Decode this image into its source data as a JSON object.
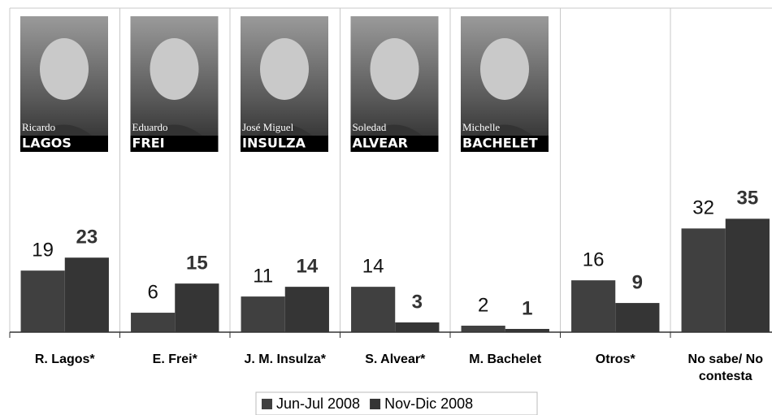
{
  "chart_data": {
    "type": "bar",
    "categories": [
      "R. Lagos*",
      "E. Frei*",
      "J. M. Insulza*",
      "S. Alvear*",
      "M. Bachelet",
      "Otros*",
      "No sabe/ No contesta"
    ],
    "series": [
      {
        "name": "Jun-Jul 2008",
        "color": "#404040",
        "values": [
          19,
          6,
          11,
          14,
          2,
          16,
          32
        ]
      },
      {
        "name": "Nov-Dic 2008",
        "color": "#353535",
        "values": [
          23,
          15,
          14,
          3,
          1,
          9,
          35
        ]
      }
    ],
    "ylim": [
      0,
      100
    ],
    "portraits": [
      {
        "first": "Ricardo",
        "last": "LAGOS"
      },
      {
        "first": "Eduardo",
        "last": "FREI"
      },
      {
        "first": "José Miguel",
        "last": "INSULZA"
      },
      {
        "first": "Soledad",
        "last": "ALVEAR"
      },
      {
        "first": "Michelle",
        "last": "BACHELET"
      }
    ]
  }
}
